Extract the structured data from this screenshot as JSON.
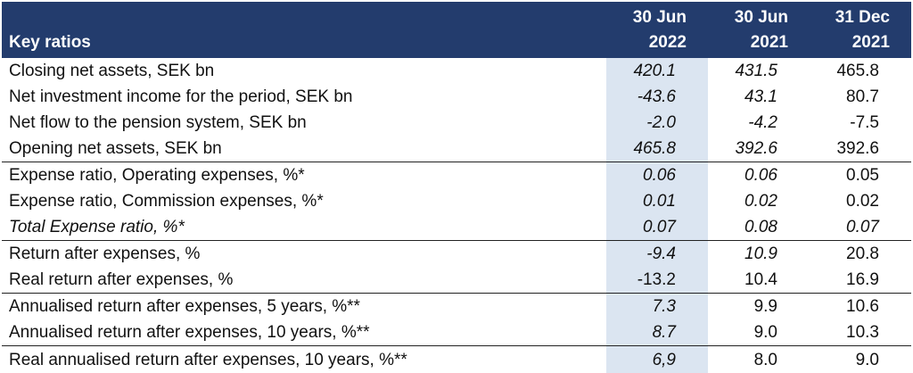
{
  "header": {
    "title": "Key ratios",
    "columns": [
      {
        "line1": "30 Jun",
        "line2": "2022"
      },
      {
        "line1": "30 Jun",
        "line2": "2021"
      },
      {
        "line1": "31 Dec",
        "line2": "2021"
      }
    ]
  },
  "colors": {
    "header_bg": "#233c6d",
    "highlight_col": "#dbe5f1"
  },
  "rows": [
    {
      "label": "Closing net assets, SEK bn",
      "values": [
        "420.1",
        "431.5",
        "465.8"
      ]
    },
    {
      "label": "Net investment income for the period, SEK bn",
      "values": [
        "-43.6",
        "43.1",
        "80.7"
      ]
    },
    {
      "label": "Net flow to the pension system, SEK bn",
      "values": [
        "-2.0",
        "-4.2",
        "-7.5"
      ]
    },
    {
      "label": "Opening net assets, SEK bn",
      "values": [
        "465.8",
        "392.6",
        "392.6"
      ]
    },
    {
      "label": "Expense ratio, Operating expenses, %*",
      "values": [
        "0.06",
        "0.06",
        "0.05"
      ]
    },
    {
      "label": "Expense ratio, Commission expenses, %*",
      "values": [
        "0.01",
        "0.02",
        "0.02"
      ]
    },
    {
      "label": "Total Expense ratio, %*",
      "values": [
        "0.07",
        "0.08",
        "0.07"
      ]
    },
    {
      "label": "Return after expenses, %",
      "values": [
        "-9.4",
        "10.9",
        "20.8"
      ]
    },
    {
      "label": "Real return after expenses, %",
      "values": [
        "-13.2",
        "10.4",
        "16.9"
      ]
    },
    {
      "label": "Annualised return after expenses, 5 years, %**",
      "values": [
        "7.3",
        "9.9",
        "10.6"
      ]
    },
    {
      "label": "Annualised return after expenses, 10 years, %**",
      "values": [
        "8.7",
        "9.0",
        "10.3"
      ]
    },
    {
      "label": "Real annualised return after expenses, 10 years, %**",
      "values": [
        "6,9",
        "8.0",
        "9.0"
      ]
    }
  ]
}
